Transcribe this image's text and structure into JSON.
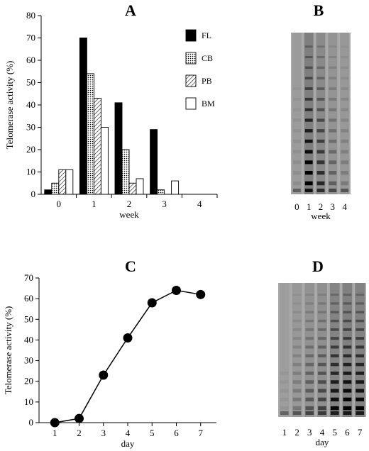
{
  "chart_data": [
    {
      "panel": "A",
      "type": "bar",
      "xlabel": "week",
      "ylabel": "Telomerase activity (%)",
      "ylim": [
        0,
        80
      ],
      "yticks": [
        0,
        10,
        20,
        30,
        40,
        50,
        60,
        70,
        80
      ],
      "categories": [
        "0",
        "1",
        "2",
        "3",
        "4"
      ],
      "series": [
        {
          "name": "FL",
          "fill": "solid",
          "values": [
            2,
            70,
            41,
            29,
            0
          ]
        },
        {
          "name": "CB",
          "fill": "dots",
          "values": [
            5,
            54,
            20,
            2,
            0
          ]
        },
        {
          "name": "PB",
          "fill": "hatch",
          "values": [
            11,
            43,
            5,
            0,
            0
          ]
        },
        {
          "name": "BM",
          "fill": "open",
          "values": [
            11,
            30,
            7,
            6,
            0
          ]
        }
      ],
      "legend": "top-right"
    },
    {
      "panel": "B",
      "type": "gel",
      "xlabel": "week",
      "lanes": [
        "0",
        "1",
        "2",
        "3",
        "4"
      ],
      "intensity": [
        0.08,
        1.0,
        0.65,
        0.32,
        0.18
      ]
    },
    {
      "panel": "C",
      "type": "line",
      "xlabel": "day",
      "ylabel": "Telomerase activity (%)",
      "ylim": [
        0,
        70
      ],
      "yticks": [
        0,
        10,
        20,
        30,
        40,
        50,
        60,
        70
      ],
      "x": [
        1,
        2,
        3,
        4,
        5,
        6,
        7
      ],
      "values": [
        0,
        2,
        23,
        41,
        58,
        64,
        62
      ],
      "markers": "filled-circle"
    },
    {
      "panel": "D",
      "type": "gel",
      "xlabel": "day",
      "lanes": [
        "1",
        "2",
        "3",
        "4",
        "5",
        "6",
        "7"
      ],
      "intensity": [
        0.05,
        0.2,
        0.38,
        0.5,
        0.85,
        0.95,
        0.9
      ]
    }
  ]
}
